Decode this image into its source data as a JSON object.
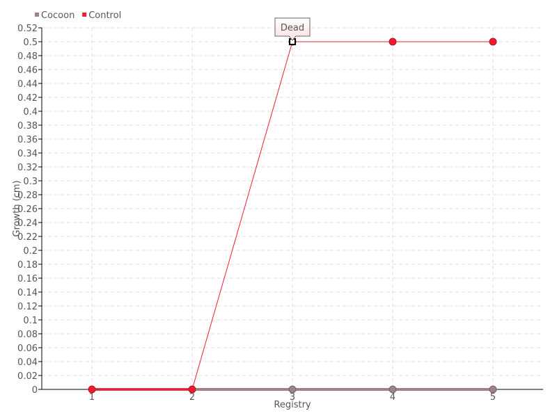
{
  "chart_data": {
    "type": "line",
    "title": "",
    "xlabel": "Registry",
    "ylabel": "Growth (cm)",
    "categories": [
      "1",
      "2",
      "3",
      "4",
      "5"
    ],
    "ylim": [
      0,
      0.52
    ],
    "ytick_step": 0.02,
    "grid": true,
    "legend_placement": "top-left",
    "series": [
      {
        "name": "Cocoon",
        "color": "#9e8286",
        "values": [
          0,
          0,
          0,
          0,
          0
        ]
      },
      {
        "name": "Control",
        "color": "#ee1c2e",
        "values": [
          0,
          0,
          0.5,
          0.5,
          0.5
        ]
      }
    ],
    "tooltip": {
      "series": "Control",
      "category": "3",
      "text": "Dead"
    }
  }
}
